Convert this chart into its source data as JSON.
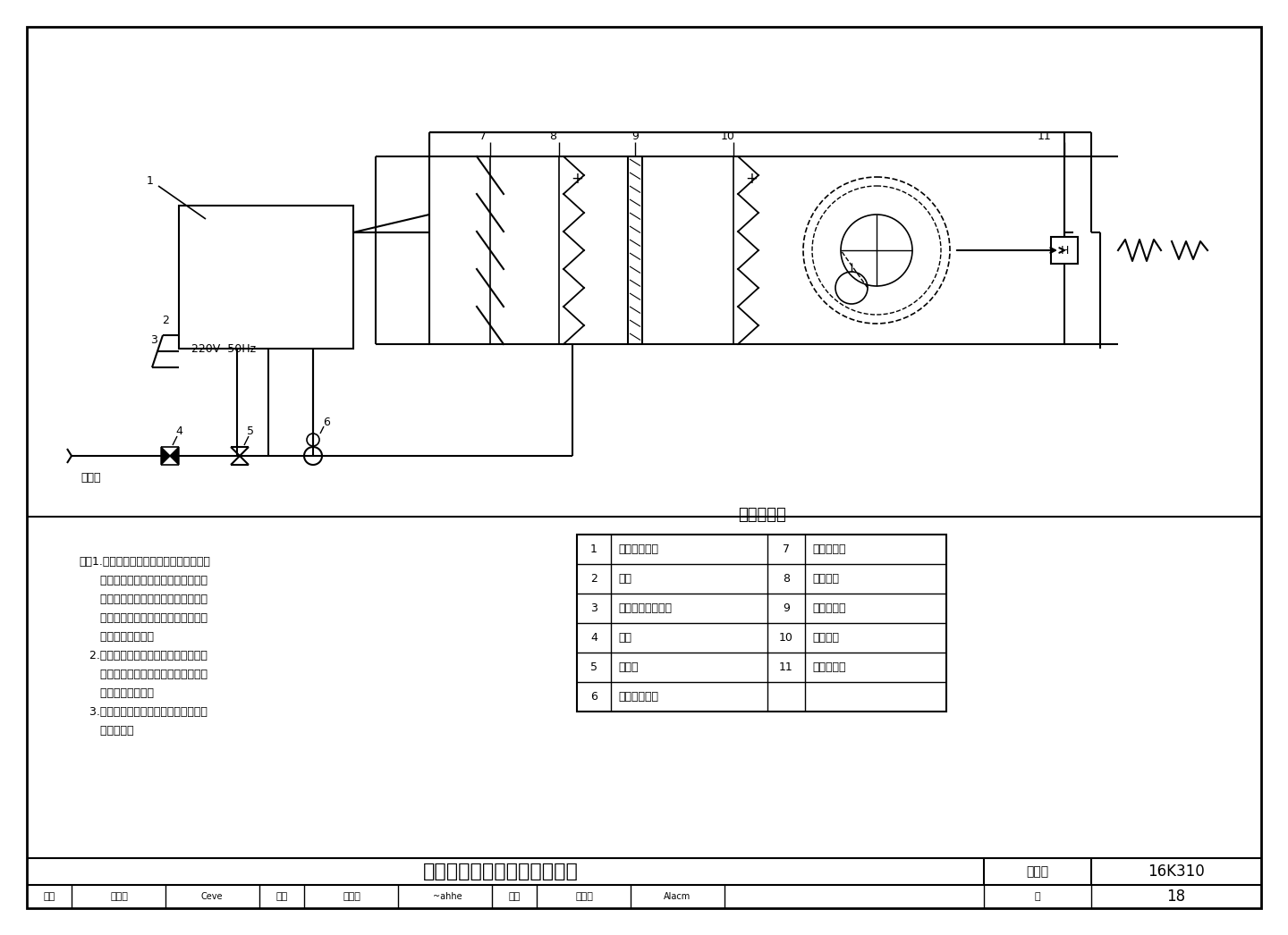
{
  "title": "直排式湿膜加湿器控制原理图",
  "figure_number": "16K310",
  "page": "18",
  "table_title": "主要附件表",
  "table_items_left": [
    [
      "1",
      "加湿器控制器"
    ],
    [
      "2",
      "电源"
    ],
    [
      "3",
      "接空调机组控制箱"
    ],
    [
      "4",
      "闸阀"
    ],
    [
      "5",
      "过滤器"
    ],
    [
      "6",
      "给水管电磁阀"
    ]
  ],
  "table_items_right": [
    [
      "7",
      "空气过滤器"
    ],
    [
      "8",
      "加热盘管"
    ],
    [
      "9",
      "湿膜加湿器"
    ],
    [
      "10",
      "再热盘管"
    ],
    [
      "11",
      "湿度传感器"
    ]
  ],
  "notes_lines": [
    "注：1.当送风湿度升高超过设定值时，根据",
    "      湿度传感器检测到的信号关闭给水管",
    "      电磁阀。当送风湿度降低超出设定值",
    "      时，根据湿度传感器检测到的信号打",
    "      开给水管电磁阀。",
    "   2.当需要加湿时，电控开启给水管电磁",
    "      阀。当空调机组停止工作时，给水管",
    "      电磁阀联锁关闭。",
    "   3.风管内加湿器控制方式与空调机组内",
    "      原理相同。"
  ],
  "audit_row": [
    "审核",
    "徐立平",
    "校对",
    "刘海滨",
    "设计",
    "张亚翊",
    "页",
    "18"
  ]
}
